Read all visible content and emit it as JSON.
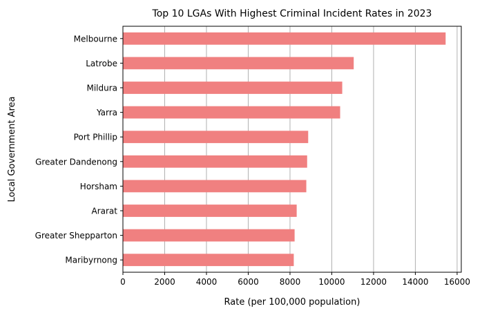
{
  "chart_data": {
    "type": "bar",
    "orientation": "horizontal",
    "title": "Top 10 LGAs With Highest Criminal Incident Rates in 2023",
    "xlabel": "Rate (per 100,000 population)",
    "ylabel": "Local Government Area",
    "categories": [
      "Melbourne",
      "Latrobe",
      "Mildura",
      "Yarra",
      "Port Phillip",
      "Greater Dandenong",
      "Horsham",
      "Ararat",
      "Greater Shepparton",
      "Maribyrnong"
    ],
    "values": [
      15450,
      11050,
      10500,
      10400,
      8870,
      8820,
      8780,
      8320,
      8220,
      8180
    ],
    "xlim": [
      0,
      16200
    ],
    "xticks": [
      0,
      2000,
      4000,
      6000,
      8000,
      10000,
      12000,
      14000,
      16000
    ],
    "xtick_labels": [
      "0",
      "2000",
      "4000",
      "6000",
      "8000",
      "10000",
      "12000",
      "14000",
      "16000"
    ],
    "grid": "vertical",
    "bar_color": "#f08080",
    "grid_color": "#b0b0b0"
  }
}
